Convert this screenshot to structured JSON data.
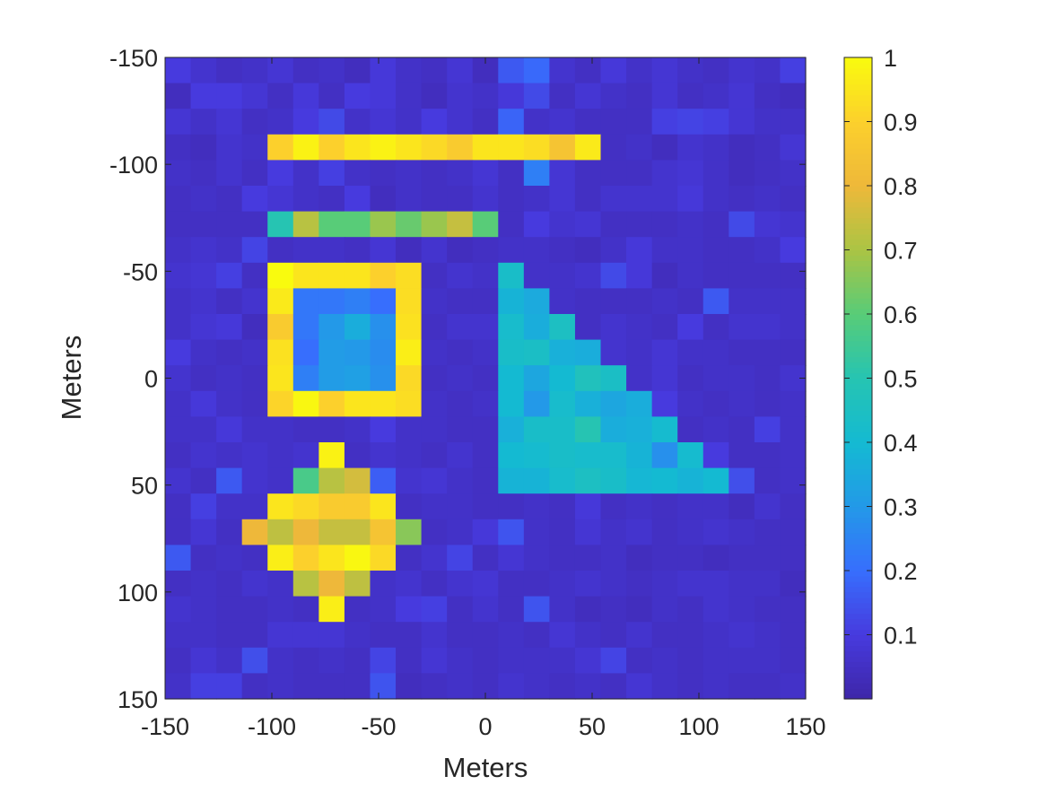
{
  "chart_data": {
    "type": "heatmap",
    "title": "",
    "xlabel": "Meters",
    "ylabel": "Meters",
    "xlim": [
      -150,
      150
    ],
    "ylim": [
      -150,
      150
    ],
    "y_reversed": true,
    "x_ticks": [
      -150,
      -100,
      -50,
      0,
      50,
      100,
      150
    ],
    "y_ticks": [
      -150,
      -100,
      -50,
      0,
      50,
      100,
      150
    ],
    "x_tick_labels": [
      "-150",
      "-100",
      "-50",
      "0",
      "50",
      "100",
      "150"
    ],
    "y_tick_labels": [
      "-150",
      "-100",
      "-50",
      "0",
      "50",
      "100",
      "150"
    ],
    "colormap": "parula",
    "colorbar": {
      "range": [
        0,
        1
      ],
      "ticks": [
        0.1,
        0.2,
        0.3,
        0.4,
        0.5,
        0.6,
        0.7,
        0.8,
        0.9,
        1
      ],
      "tick_labels": [
        "0.1",
        "0.2",
        "0.3",
        "0.4",
        "0.5",
        "0.6",
        "0.7",
        "0.8",
        "0.9",
        "1"
      ]
    },
    "grid": false,
    "x_centers": [
      -144,
      -132,
      -120,
      -108,
      -96,
      -84,
      -72,
      -60,
      -48,
      -36,
      -24,
      -12,
      0,
      12,
      24,
      36,
      48,
      60,
      72,
      84,
      96,
      108,
      120,
      132,
      144
    ],
    "y_centers": [
      -144,
      -132,
      -120,
      -108,
      -96,
      -84,
      -72,
      -60,
      -48,
      -36,
      -24,
      -12,
      0,
      12,
      24,
      36,
      48,
      60,
      72,
      84,
      96,
      108,
      120,
      132,
      144
    ],
    "z": [
      [
        0.1,
        0.07,
        0.05,
        0.06,
        0.08,
        0.05,
        0.06,
        0.04,
        0.09,
        0.06,
        0.05,
        0.08,
        0.04,
        0.16,
        0.19,
        0.07,
        0.05,
        0.09,
        0.06,
        0.08,
        0.06,
        0.05,
        0.07,
        0.06,
        0.11
      ],
      [
        0.04,
        0.1,
        0.1,
        0.08,
        0.05,
        0.09,
        0.05,
        0.1,
        0.09,
        0.06,
        0.04,
        0.07,
        0.06,
        0.09,
        0.13,
        0.05,
        0.08,
        0.06,
        0.05,
        0.08,
        0.05,
        0.06,
        0.08,
        0.05,
        0.04
      ],
      [
        0.08,
        0.06,
        0.08,
        0.05,
        0.06,
        0.1,
        0.13,
        0.06,
        0.08,
        0.06,
        0.1,
        0.07,
        0.05,
        0.18,
        0.06,
        0.07,
        0.05,
        0.05,
        0.05,
        0.11,
        0.12,
        0.11,
        0.08,
        0.06,
        0.06
      ],
      [
        0.05,
        0.04,
        0.07,
        0.06,
        0.9,
        0.98,
        0.9,
        0.95,
        0.98,
        0.95,
        0.92,
        0.88,
        0.95,
        0.95,
        0.93,
        0.85,
        0.96,
        0.05,
        0.06,
        0.04,
        0.07,
        0.06,
        0.04,
        0.05,
        0.08
      ],
      [
        0.06,
        0.05,
        0.07,
        0.05,
        0.1,
        0.06,
        0.11,
        0.06,
        0.05,
        0.06,
        0.05,
        0.06,
        0.08,
        0.05,
        0.24,
        0.08,
        0.05,
        0.05,
        0.05,
        0.07,
        0.08,
        0.06,
        0.04,
        0.05,
        0.06
      ],
      [
        0.05,
        0.06,
        0.05,
        0.1,
        0.08,
        0.06,
        0.05,
        0.1,
        0.04,
        0.06,
        0.05,
        0.05,
        0.07,
        0.05,
        0.06,
        0.08,
        0.05,
        0.07,
        0.07,
        0.07,
        0.09,
        0.06,
        0.05,
        0.06,
        0.05
      ],
      [
        0.05,
        0.05,
        0.05,
        0.05,
        0.5,
        0.72,
        0.6,
        0.6,
        0.68,
        0.62,
        0.68,
        0.74,
        0.6,
        0.05,
        0.1,
        0.07,
        0.08,
        0.05,
        0.05,
        0.05,
        0.06,
        0.05,
        0.13,
        0.08,
        0.07
      ],
      [
        0.06,
        0.07,
        0.06,
        0.12,
        0.05,
        0.06,
        0.06,
        0.05,
        0.08,
        0.04,
        0.07,
        0.04,
        0.05,
        0.06,
        0.06,
        0.05,
        0.04,
        0.06,
        0.09,
        0.06,
        0.06,
        0.05,
        0.05,
        0.06,
        0.1
      ],
      [
        0.07,
        0.08,
        0.11,
        0.05,
        1.0,
        0.95,
        0.95,
        0.95,
        0.9,
        0.93,
        0.05,
        0.07,
        0.06,
        0.43,
        0.06,
        0.06,
        0.07,
        0.13,
        0.09,
        0.04,
        0.06,
        0.05,
        0.05,
        0.05,
        0.05
      ],
      [
        0.06,
        0.07,
        0.05,
        0.07,
        0.96,
        0.22,
        0.22,
        0.24,
        0.2,
        0.93,
        0.06,
        0.05,
        0.05,
        0.38,
        0.35,
        0.06,
        0.05,
        0.05,
        0.05,
        0.06,
        0.05,
        0.16,
        0.06,
        0.06,
        0.06
      ],
      [
        0.06,
        0.08,
        0.09,
        0.04,
        0.88,
        0.22,
        0.3,
        0.36,
        0.28,
        0.94,
        0.05,
        0.07,
        0.07,
        0.42,
        0.36,
        0.45,
        0.05,
        0.07,
        0.06,
        0.05,
        0.1,
        0.05,
        0.07,
        0.07,
        0.06
      ],
      [
        0.1,
        0.06,
        0.05,
        0.06,
        0.94,
        0.2,
        0.31,
        0.3,
        0.27,
        0.97,
        0.06,
        0.05,
        0.06,
        0.43,
        0.44,
        0.37,
        0.36,
        0.07,
        0.06,
        0.08,
        0.06,
        0.06,
        0.05,
        0.05,
        0.05
      ],
      [
        0.07,
        0.05,
        0.06,
        0.05,
        0.95,
        0.24,
        0.31,
        0.32,
        0.28,
        0.92,
        0.05,
        0.06,
        0.05,
        0.4,
        0.34,
        0.4,
        0.47,
        0.44,
        0.06,
        0.08,
        0.05,
        0.06,
        0.06,
        0.05,
        0.07
      ],
      [
        0.06,
        0.09,
        0.06,
        0.05,
        0.91,
        0.99,
        0.9,
        0.95,
        0.95,
        0.93,
        0.06,
        0.05,
        0.06,
        0.4,
        0.3,
        0.42,
        0.37,
        0.34,
        0.36,
        0.1,
        0.06,
        0.05,
        0.06,
        0.05,
        0.06
      ],
      [
        0.06,
        0.06,
        0.09,
        0.06,
        0.06,
        0.05,
        0.05,
        0.06,
        0.1,
        0.06,
        0.06,
        0.05,
        0.05,
        0.37,
        0.43,
        0.43,
        0.5,
        0.36,
        0.37,
        0.41,
        0.05,
        0.06,
        0.05,
        0.11,
        0.06
      ],
      [
        0.05,
        0.07,
        0.06,
        0.07,
        0.06,
        0.07,
        0.98,
        0.05,
        0.07,
        0.06,
        0.05,
        0.07,
        0.05,
        0.4,
        0.41,
        0.43,
        0.42,
        0.42,
        0.38,
        0.28,
        0.41,
        0.1,
        0.05,
        0.05,
        0.06
      ],
      [
        0.07,
        0.05,
        0.16,
        0.07,
        0.06,
        0.57,
        0.72,
        0.76,
        0.17,
        0.07,
        0.08,
        0.06,
        0.05,
        0.38,
        0.38,
        0.42,
        0.45,
        0.43,
        0.39,
        0.4,
        0.38,
        0.4,
        0.14,
        0.05,
        0.06
      ],
      [
        0.05,
        0.11,
        0.06,
        0.06,
        0.95,
        0.92,
        0.88,
        0.88,
        0.95,
        0.05,
        0.06,
        0.06,
        0.05,
        0.05,
        0.06,
        0.05,
        0.09,
        0.05,
        0.06,
        0.05,
        0.06,
        0.06,
        0.04,
        0.07,
        0.05
      ],
      [
        0.05,
        0.08,
        0.05,
        0.8,
        0.73,
        0.8,
        0.74,
        0.74,
        0.85,
        0.66,
        0.05,
        0.06,
        0.09,
        0.15,
        0.06,
        0.05,
        0.08,
        0.06,
        0.07,
        0.05,
        0.06,
        0.07,
        0.06,
        0.05,
        0.05
      ],
      [
        0.16,
        0.05,
        0.06,
        0.05,
        0.97,
        0.9,
        0.95,
        0.99,
        0.92,
        0.05,
        0.07,
        0.12,
        0.05,
        0.08,
        0.06,
        0.05,
        0.05,
        0.06,
        0.04,
        0.05,
        0.05,
        0.04,
        0.05,
        0.05,
        0.05
      ],
      [
        0.05,
        0.06,
        0.05,
        0.07,
        0.06,
        0.72,
        0.8,
        0.73,
        0.06,
        0.07,
        0.05,
        0.07,
        0.08,
        0.05,
        0.05,
        0.06,
        0.07,
        0.06,
        0.05,
        0.06,
        0.07,
        0.07,
        0.06,
        0.06,
        0.04
      ],
      [
        0.07,
        0.06,
        0.05,
        0.05,
        0.06,
        0.05,
        0.97,
        0.05,
        0.06,
        0.1,
        0.11,
        0.05,
        0.07,
        0.05,
        0.15,
        0.06,
        0.04,
        0.05,
        0.04,
        0.06,
        0.05,
        0.07,
        0.06,
        0.05,
        0.05
      ],
      [
        0.06,
        0.06,
        0.05,
        0.05,
        0.08,
        0.08,
        0.08,
        0.06,
        0.05,
        0.05,
        0.07,
        0.05,
        0.05,
        0.06,
        0.05,
        0.08,
        0.06,
        0.05,
        0.07,
        0.05,
        0.05,
        0.06,
        0.07,
        0.06,
        0.05
      ],
      [
        0.05,
        0.08,
        0.06,
        0.14,
        0.06,
        0.05,
        0.06,
        0.05,
        0.12,
        0.05,
        0.08,
        0.06,
        0.05,
        0.06,
        0.06,
        0.06,
        0.08,
        0.12,
        0.05,
        0.06,
        0.05,
        0.06,
        0.06,
        0.06,
        0.05
      ],
      [
        0.06,
        0.11,
        0.11,
        0.05,
        0.06,
        0.05,
        0.05,
        0.05,
        0.15,
        0.04,
        0.05,
        0.06,
        0.05,
        0.07,
        0.06,
        0.05,
        0.06,
        0.05,
        0.08,
        0.06,
        0.05,
        0.06,
        0.05,
        0.05,
        0.06
      ]
    ]
  }
}
